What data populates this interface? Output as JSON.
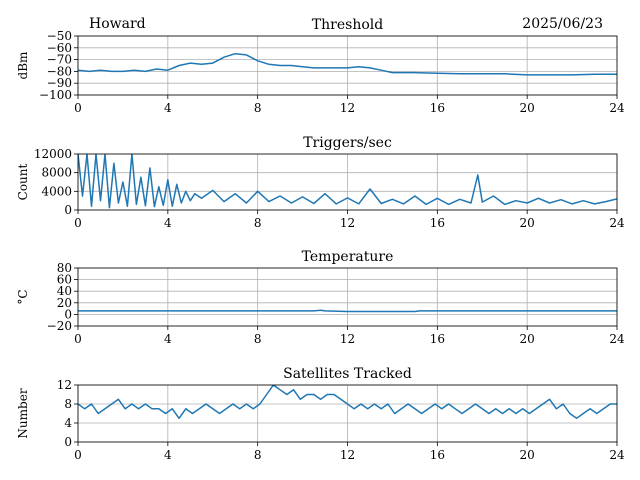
{
  "header": {
    "station": "Howard",
    "date": "2025/06/23"
  },
  "colors": {
    "line": "#1f77b4",
    "grid": "#b0b0b0",
    "axis": "#000000"
  },
  "x_ticks": [
    "0",
    "4",
    "8",
    "12",
    "16",
    "20",
    "24"
  ],
  "chart_data": [
    {
      "type": "line",
      "title": "Threshold",
      "ylabel": "dBm",
      "xlim": [
        0,
        24
      ],
      "ylim": [
        -100,
        -50
      ],
      "yticks": [
        -100,
        -90,
        -80,
        -70,
        -60,
        -50
      ],
      "ytick_labels": [
        "−100",
        "−90",
        "−80",
        "−70",
        "−60",
        "−50"
      ],
      "grid": true,
      "x": [
        0,
        0.5,
        1,
        1.5,
        2,
        2.5,
        3,
        3.5,
        4,
        4.5,
        5,
        5.5,
        6,
        6.5,
        7,
        7.5,
        8,
        8.5,
        9,
        9.5,
        10,
        10.5,
        11,
        11.5,
        12,
        12.5,
        13,
        13.5,
        14,
        15,
        16,
        17,
        18,
        19,
        20,
        21,
        22,
        23,
        24
      ],
      "y": [
        -79,
        -80,
        -79,
        -80,
        -80,
        -79,
        -80,
        -78,
        -79,
        -75,
        -73,
        -74,
        -73,
        -68,
        -65,
        -66,
        -71,
        -74,
        -75,
        -75,
        -76,
        -77,
        -77,
        -77,
        -77,
        -76,
        -77,
        -79,
        -81,
        -81,
        -81.5,
        -82,
        -82,
        -82,
        -83,
        -83,
        -83,
        -82.5,
        -82.5
      ]
    },
    {
      "type": "line",
      "title": "Triggers/sec",
      "ylabel": "Count",
      "xlim": [
        0,
        24
      ],
      "ylim": [
        0,
        12000
      ],
      "yticks": [
        0,
        4000,
        8000,
        12000
      ],
      "ytick_labels": [
        "0",
        "4000",
        "8000",
        "12000"
      ],
      "grid": true,
      "x": [
        0,
        0.2,
        0.4,
        0.6,
        0.8,
        1,
        1.2,
        1.4,
        1.6,
        1.8,
        2,
        2.2,
        2.4,
        2.6,
        2.8,
        3,
        3.2,
        3.4,
        3.6,
        3.8,
        4,
        4.2,
        4.4,
        4.6,
        4.8,
        5,
        5.2,
        5.5,
        6,
        6.5,
        7,
        7.5,
        8,
        8.5,
        9,
        9.5,
        10,
        10.5,
        11,
        11.5,
        12,
        12.5,
        13,
        13.5,
        14,
        14.5,
        15,
        15.5,
        16,
        16.5,
        17,
        17.5,
        17.8,
        18,
        18.5,
        19,
        19.5,
        20,
        20.5,
        21,
        21.5,
        22,
        22.5,
        23,
        23.5,
        24
      ],
      "y": [
        12000,
        3000,
        12000,
        800,
        12000,
        2000,
        12000,
        500,
        10000,
        1500,
        6000,
        800,
        12000,
        1200,
        7000,
        900,
        9000,
        700,
        5000,
        1000,
        6500,
        800,
        5500,
        1500,
        4000,
        2000,
        3500,
        2500,
        4200,
        1800,
        3500,
        1500,
        4000,
        1800,
        3000,
        1500,
        2800,
        1400,
        3500,
        1300,
        2600,
        1300,
        4500,
        1400,
        2300,
        1300,
        3000,
        1200,
        2500,
        1200,
        2300,
        1500,
        7500,
        1700,
        3000,
        1200,
        2000,
        1500,
        2500,
        1500,
        2200,
        1300,
        2000,
        1300,
        1800,
        2400
      ]
    },
    {
      "type": "line",
      "title": "Temperature",
      "ylabel": "°C",
      "xlim": [
        0,
        24
      ],
      "ylim": [
        -20,
        80
      ],
      "yticks": [
        -20,
        0,
        20,
        40,
        60,
        80
      ],
      "ytick_labels": [
        "−20",
        "0",
        "20",
        "40",
        "60",
        "80"
      ],
      "grid": true,
      "x": [
        0,
        4,
        8,
        10.5,
        10.8,
        11,
        12,
        15,
        15.2,
        18,
        20,
        24
      ],
      "y": [
        6,
        6,
        6,
        6,
        7,
        6,
        5,
        5,
        6,
        6,
        6,
        6
      ]
    },
    {
      "type": "line",
      "title": "Satellites Tracked",
      "ylabel": "Number",
      "xlim": [
        0,
        24
      ],
      "ylim": [
        0,
        12
      ],
      "yticks": [
        0,
        4,
        8,
        12
      ],
      "ytick_labels": [
        "0",
        "4",
        "8",
        "12"
      ],
      "grid": true,
      "x": [
        0,
        0.3,
        0.6,
        0.9,
        1.2,
        1.5,
        1.8,
        2.1,
        2.4,
        2.7,
        3,
        3.3,
        3.6,
        3.9,
        4.2,
        4.5,
        4.8,
        5.1,
        5.4,
        5.7,
        6,
        6.3,
        6.6,
        6.9,
        7.2,
        7.5,
        7.8,
        8.1,
        8.4,
        8.7,
        9,
        9.3,
        9.6,
        9.9,
        10.2,
        10.5,
        10.8,
        11.1,
        11.4,
        11.7,
        12,
        12.3,
        12.6,
        12.9,
        13.2,
        13.5,
        13.8,
        14.1,
        14.4,
        14.7,
        15,
        15.3,
        15.6,
        15.9,
        16.2,
        16.5,
        16.8,
        17.1,
        17.4,
        17.7,
        18,
        18.3,
        18.6,
        18.9,
        19.2,
        19.5,
        19.8,
        20.1,
        20.4,
        20.7,
        21,
        21.3,
        21.6,
        21.9,
        22.2,
        22.5,
        22.8,
        23.1,
        23.4,
        23.7,
        24
      ],
      "y": [
        8,
        7,
        8,
        6,
        7,
        8,
        9,
        7,
        8,
        7,
        8,
        7,
        7,
        6,
        7,
        5,
        7,
        6,
        7,
        8,
        7,
        6,
        7,
        8,
        7,
        8,
        7,
        8,
        10,
        12,
        11,
        10,
        11,
        9,
        10,
        10,
        9,
        10,
        10,
        9,
        8,
        7,
        8,
        7,
        8,
        7,
        8,
        6,
        7,
        8,
        7,
        6,
        7,
        8,
        7,
        8,
        7,
        6,
        7,
        8,
        7,
        6,
        7,
        6,
        7,
        6,
        7,
        6,
        7,
        8,
        9,
        7,
        8,
        6,
        5,
        6,
        7,
        6,
        7,
        8,
        8
      ]
    }
  ]
}
